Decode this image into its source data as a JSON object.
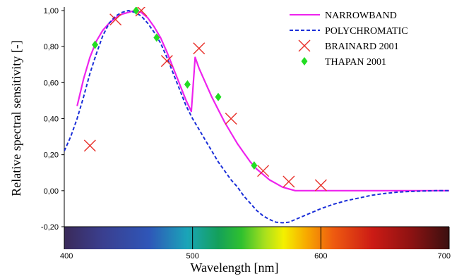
{
  "chart_data": {
    "type": "line",
    "xlabel": "Wavelength [nm]",
    "ylabel": "Relative spectral sensitivity [-]",
    "xlim": [
      400,
      700
    ],
    "ylim": [
      -0.2,
      1.0
    ],
    "x_ticks": [
      "400",
      "500",
      "600",
      "700"
    ],
    "x_tick_values": [
      400,
      500,
      600,
      700
    ],
    "y_ticks": [
      "-0,20",
      "0,00",
      "0,20",
      "0,40",
      "0,60",
      "0,80",
      "1,00"
    ],
    "y_tick_values": [
      -0.2,
      0.0,
      0.2,
      0.4,
      0.6,
      0.8,
      1.0
    ],
    "grid": false,
    "legend_position": "top-right",
    "color_bar": "visible spectrum along the x axis (violet to red)",
    "series": [
      {
        "name": "NARROWBAND",
        "kind": "line",
        "style": "solid",
        "color": "#ee22ee",
        "points": [
          [
            410,
            0.47
          ],
          [
            415,
            0.62
          ],
          [
            420,
            0.74
          ],
          [
            425,
            0.83
          ],
          [
            430,
            0.89
          ],
          [
            435,
            0.93
          ],
          [
            440,
            0.96
          ],
          [
            445,
            0.98
          ],
          [
            450,
            0.99
          ],
          [
            455,
            1.0
          ],
          [
            460,
            0.99
          ],
          [
            465,
            0.96
          ],
          [
            470,
            0.91
          ],
          [
            475,
            0.85
          ],
          [
            480,
            0.77
          ],
          [
            485,
            0.68
          ],
          [
            490,
            0.59
          ],
          [
            495,
            0.5
          ],
          [
            499,
            0.44
          ],
          [
            502,
            0.74
          ],
          [
            505,
            0.68
          ],
          [
            510,
            0.6
          ],
          [
            515,
            0.52
          ],
          [
            520,
            0.45
          ],
          [
            525,
            0.38
          ],
          [
            530,
            0.32
          ],
          [
            535,
            0.26
          ],
          [
            540,
            0.21
          ],
          [
            545,
            0.16
          ],
          [
            550,
            0.12
          ],
          [
            555,
            0.09
          ],
          [
            560,
            0.06
          ],
          [
            565,
            0.04
          ],
          [
            570,
            0.02
          ],
          [
            575,
            0.01
          ],
          [
            580,
            0.0
          ],
          [
            600,
            0.0
          ],
          [
            650,
            0.0
          ],
          [
            700,
            0.0
          ]
        ]
      },
      {
        "name": "POLYCHROMATIC",
        "kind": "line",
        "style": "dashed",
        "color": "#1a2ed8",
        "points": [
          [
            400,
            0.22
          ],
          [
            405,
            0.3
          ],
          [
            410,
            0.4
          ],
          [
            415,
            0.52
          ],
          [
            420,
            0.65
          ],
          [
            425,
            0.76
          ],
          [
            430,
            0.86
          ],
          [
            435,
            0.93
          ],
          [
            440,
            0.97
          ],
          [
            445,
            0.99
          ],
          [
            450,
            1.0
          ],
          [
            455,
            0.99
          ],
          [
            460,
            0.97
          ],
          [
            465,
            0.93
          ],
          [
            470,
            0.88
          ],
          [
            475,
            0.82
          ],
          [
            480,
            0.74
          ],
          [
            485,
            0.65
          ],
          [
            490,
            0.56
          ],
          [
            495,
            0.47
          ],
          [
            500,
            0.4
          ],
          [
            505,
            0.34
          ],
          [
            510,
            0.28
          ],
          [
            515,
            0.22
          ],
          [
            520,
            0.16
          ],
          [
            525,
            0.11
          ],
          [
            530,
            0.06
          ],
          [
            535,
            0.02
          ],
          [
            540,
            -0.03
          ],
          [
            545,
            -0.07
          ],
          [
            550,
            -0.11
          ],
          [
            555,
            -0.14
          ],
          [
            560,
            -0.16
          ],
          [
            565,
            -0.175
          ],
          [
            570,
            -0.178
          ],
          [
            575,
            -0.175
          ],
          [
            580,
            -0.16
          ],
          [
            590,
            -0.13
          ],
          [
            600,
            -0.1
          ],
          [
            610,
            -0.075
          ],
          [
            620,
            -0.055
          ],
          [
            630,
            -0.04
          ],
          [
            640,
            -0.025
          ],
          [
            650,
            -0.015
          ],
          [
            660,
            -0.008
          ],
          [
            670,
            -0.004
          ],
          [
            680,
            -0.002
          ],
          [
            690,
            0.0
          ],
          [
            700,
            0.0
          ]
        ]
      },
      {
        "name": "BRAINARD 2001",
        "kind": "marker",
        "marker": "x",
        "color": "#e8302a",
        "points": [
          [
            420,
            0.25
          ],
          [
            440,
            0.95
          ],
          [
            460,
            1.0
          ],
          [
            480,
            0.72
          ],
          [
            505,
            0.79
          ],
          [
            530,
            0.4
          ],
          [
            555,
            0.11
          ],
          [
            575,
            0.05
          ],
          [
            600,
            0.03
          ]
        ]
      },
      {
        "name": "THAPAN 2001",
        "kind": "marker",
        "marker": "diamond",
        "color": "#22dd22",
        "points": [
          [
            424,
            0.81
          ],
          [
            456,
            1.0
          ],
          [
            472,
            0.85
          ],
          [
            496,
            0.59
          ],
          [
            520,
            0.52
          ],
          [
            548,
            0.14
          ]
        ]
      }
    ]
  }
}
